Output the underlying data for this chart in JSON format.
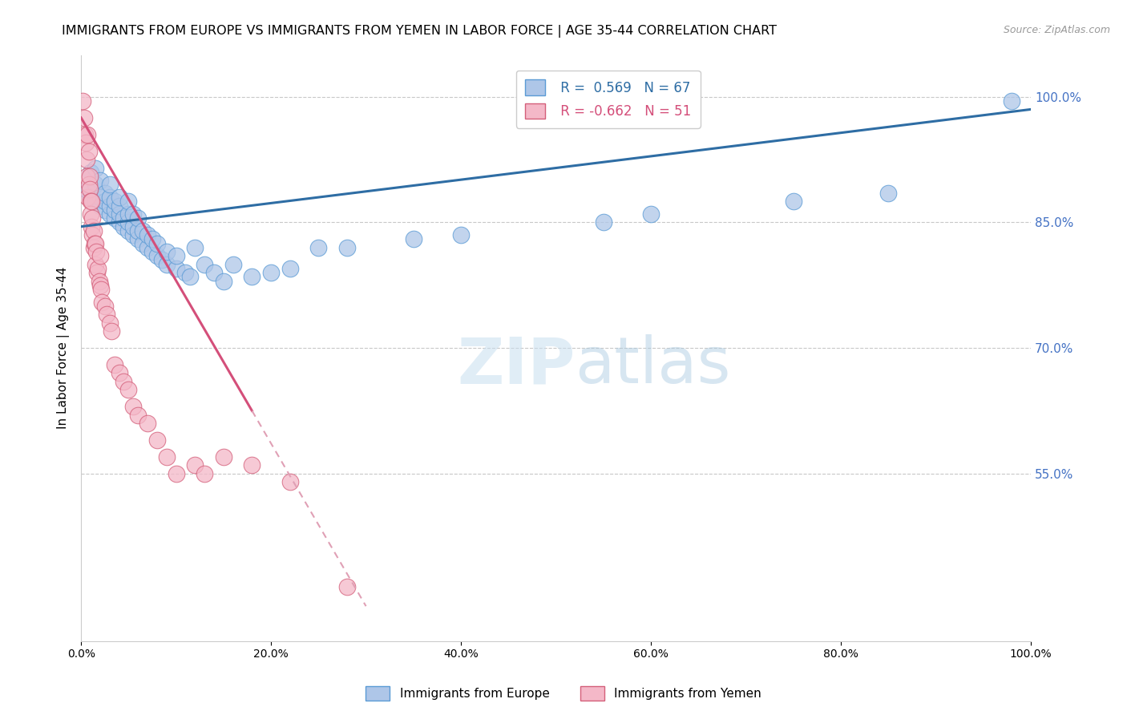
{
  "title": "IMMIGRANTS FROM EUROPE VS IMMIGRANTS FROM YEMEN IN LABOR FORCE | AGE 35-44 CORRELATION CHART",
  "source": "Source: ZipAtlas.com",
  "ylabel": "In Labor Force | Age 35-44",
  "watermark_zip": "ZIP",
  "watermark_atlas": "atlas",
  "legend_europe": "Immigrants from Europe",
  "legend_yemen": "Immigrants from Yemen",
  "R_europe": 0.569,
  "N_europe": 67,
  "R_yemen": -0.662,
  "N_yemen": 51,
  "color_europe": "#aec6e8",
  "color_europe_edge": "#5b9bd5",
  "color_yemen": "#f4b8c8",
  "color_yemen_edge": "#d45f7a",
  "trendline_europe": "#2e6da4",
  "trendline_yemen": "#d44f7a",
  "trendline_yemen_dashed": "#e0a0b5",
  "right_axis_color": "#4472c4",
  "background_color": "#ffffff",
  "grid_color": "#c8c8c8",
  "title_fontsize": 11.5,
  "source_fontsize": 9,
  "axis_label_fontsize": 11,
  "tick_fontsize": 10,
  "xlim": [
    0.0,
    1.0
  ],
  "ylim": [
    0.35,
    1.05
  ],
  "yticks_right": [
    0.55,
    0.7,
    0.85,
    1.0
  ],
  "yticks_right_labels": [
    "55.0%",
    "70.0%",
    "85.0%",
    "100.0%"
  ],
  "xticks": [
    0.0,
    0.2,
    0.4,
    0.6,
    0.8,
    1.0
  ],
  "xtick_labels": [
    "0.0%",
    "20.0%",
    "40.0%",
    "60.0%",
    "80.0%",
    "100.0%"
  ],
  "europe_x": [
    0.005,
    0.01,
    0.01,
    0.015,
    0.015,
    0.015,
    0.02,
    0.02,
    0.02,
    0.025,
    0.025,
    0.025,
    0.03,
    0.03,
    0.03,
    0.03,
    0.035,
    0.035,
    0.035,
    0.04,
    0.04,
    0.04,
    0.04,
    0.045,
    0.045,
    0.05,
    0.05,
    0.05,
    0.05,
    0.055,
    0.055,
    0.055,
    0.06,
    0.06,
    0.06,
    0.065,
    0.065,
    0.07,
    0.07,
    0.075,
    0.075,
    0.08,
    0.08,
    0.085,
    0.09,
    0.09,
    0.1,
    0.1,
    0.11,
    0.115,
    0.12,
    0.13,
    0.14,
    0.15,
    0.16,
    0.18,
    0.2,
    0.22,
    0.25,
    0.28,
    0.35,
    0.4,
    0.55,
    0.6,
    0.75,
    0.85,
    0.98
  ],
  "europe_y": [
    0.89,
    0.88,
    0.91,
    0.875,
    0.895,
    0.915,
    0.87,
    0.88,
    0.9,
    0.865,
    0.875,
    0.885,
    0.86,
    0.87,
    0.88,
    0.895,
    0.855,
    0.865,
    0.875,
    0.85,
    0.86,
    0.87,
    0.88,
    0.845,
    0.855,
    0.84,
    0.85,
    0.86,
    0.875,
    0.835,
    0.845,
    0.86,
    0.83,
    0.84,
    0.855,
    0.825,
    0.84,
    0.82,
    0.835,
    0.815,
    0.83,
    0.81,
    0.825,
    0.805,
    0.8,
    0.815,
    0.795,
    0.81,
    0.79,
    0.785,
    0.82,
    0.8,
    0.79,
    0.78,
    0.8,
    0.785,
    0.79,
    0.795,
    0.82,
    0.82,
    0.83,
    0.835,
    0.85,
    0.86,
    0.875,
    0.885,
    0.995
  ],
  "yemen_x": [
    0.002,
    0.003,
    0.004,
    0.005,
    0.006,
    0.006,
    0.007,
    0.007,
    0.008,
    0.008,
    0.009,
    0.009,
    0.01,
    0.01,
    0.011,
    0.011,
    0.012,
    0.012,
    0.013,
    0.013,
    0.014,
    0.015,
    0.015,
    0.016,
    0.017,
    0.018,
    0.019,
    0.02,
    0.02,
    0.021,
    0.022,
    0.025,
    0.027,
    0.03,
    0.032,
    0.035,
    0.04,
    0.045,
    0.05,
    0.055,
    0.06,
    0.07,
    0.08,
    0.09,
    0.1,
    0.12,
    0.13,
    0.15,
    0.18,
    0.22,
    0.28
  ],
  "yemen_y": [
    0.995,
    0.975,
    0.955,
    0.945,
    0.925,
    0.905,
    0.955,
    0.88,
    0.935,
    0.895,
    0.905,
    0.89,
    0.875,
    0.86,
    0.875,
    0.845,
    0.855,
    0.835,
    0.84,
    0.82,
    0.825,
    0.825,
    0.8,
    0.815,
    0.79,
    0.795,
    0.78,
    0.81,
    0.775,
    0.77,
    0.755,
    0.75,
    0.74,
    0.73,
    0.72,
    0.68,
    0.67,
    0.66,
    0.65,
    0.63,
    0.62,
    0.61,
    0.59,
    0.57,
    0.55,
    0.56,
    0.55,
    0.57,
    0.56,
    0.54,
    0.415
  ],
  "eu_trend_x0": 0.0,
  "eu_trend_y0": 0.845,
  "eu_trend_x1": 1.0,
  "eu_trend_y1": 0.985,
  "ye_trend_x0": 0.0,
  "ye_trend_y0": 0.975,
  "ye_trend_x1_solid": 0.18,
  "ye_trend_x1_dash": 0.3,
  "ye_trend_y_at_solid_end": 0.625,
  "ye_trend_y_at_dash_end": 0.42
}
